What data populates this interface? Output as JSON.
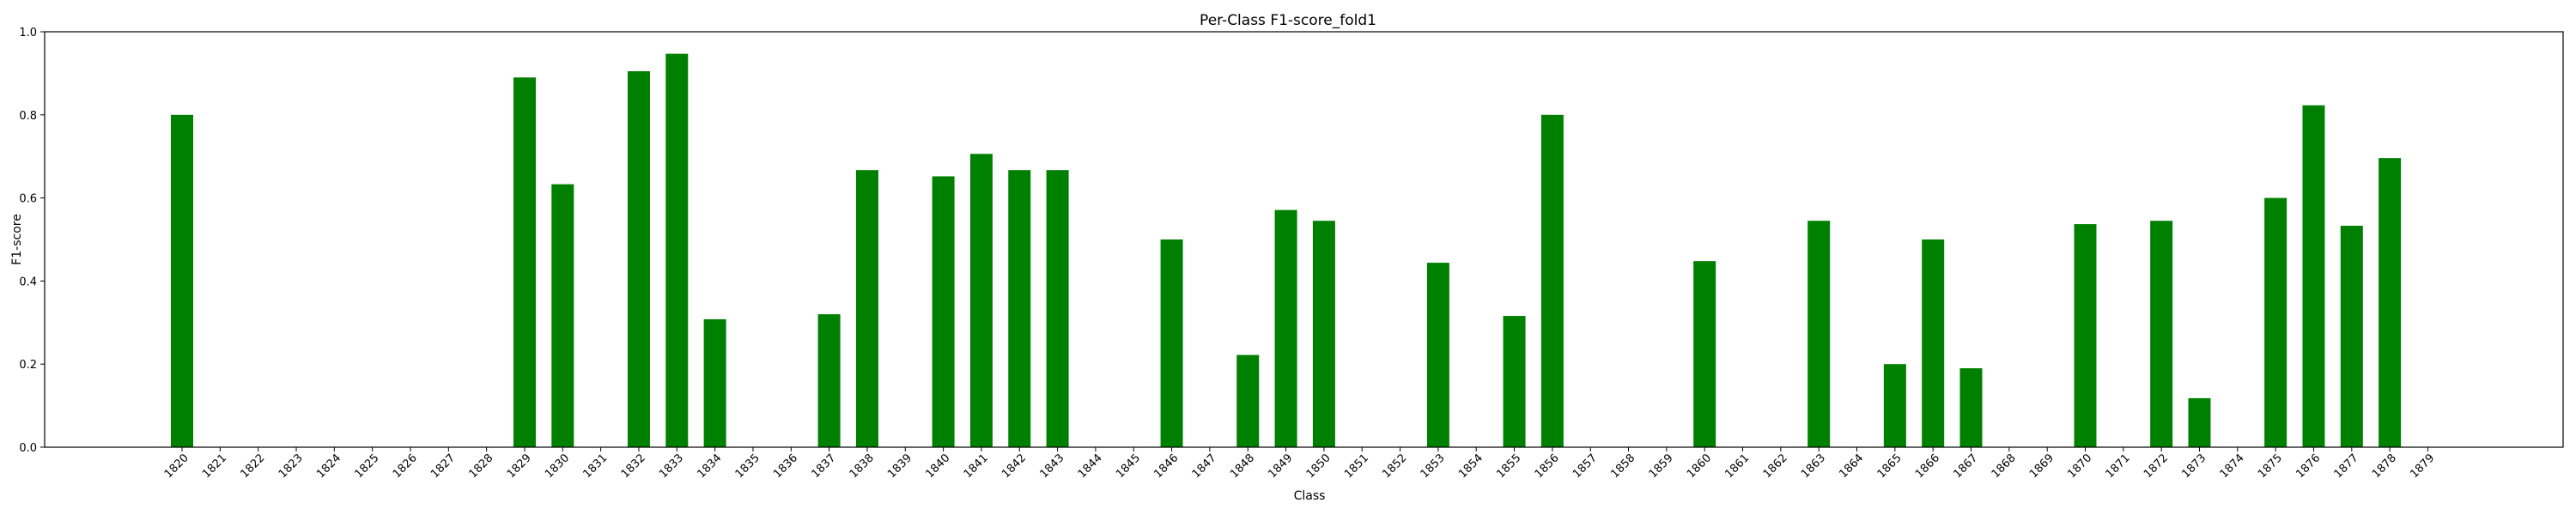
{
  "chart_data": {
    "type": "bar",
    "title": "Per-Class F1-score_fold1",
    "xlabel": "Class",
    "ylabel": "F1-score",
    "ylim": [
      0,
      1.0
    ],
    "yticks": [
      "0.0",
      "0.2",
      "0.4",
      "0.6",
      "0.8",
      "1.0"
    ],
    "grid": false,
    "bar_color": "#008000",
    "categories": [
      "1820",
      "1821",
      "1822",
      "1823",
      "1824",
      "1825",
      "1826",
      "1827",
      "1828",
      "1829",
      "1830",
      "1831",
      "1832",
      "1833",
      "1834",
      "1835",
      "1836",
      "1837",
      "1838",
      "1839",
      "1840",
      "1841",
      "1842",
      "1843",
      "1844",
      "1845",
      "1846",
      "1847",
      "1848",
      "1849",
      "1850",
      "1851",
      "1852",
      "1853",
      "1854",
      "1855",
      "1856",
      "1857",
      "1858",
      "1859",
      "1860",
      "1861",
      "1862",
      "1863",
      "1864",
      "1865",
      "1866",
      "1867",
      "1868",
      "1869",
      "1870",
      "1871",
      "1872",
      "1873",
      "1874",
      "1875",
      "1876",
      "1877",
      "1878",
      "1879"
    ],
    "values": [
      0.8,
      0,
      0,
      0,
      0,
      0,
      0,
      0,
      0,
      0.89,
      0.633,
      0,
      0.905,
      0.947,
      0.308,
      0,
      0,
      0.32,
      0.667,
      0,
      0.652,
      0.706,
      0.667,
      0.667,
      0,
      0,
      0.5,
      0,
      0.222,
      0.571,
      0.545,
      0,
      0,
      0.444,
      0,
      0.316,
      0.8,
      0,
      0,
      0,
      0.448,
      0,
      0,
      0.545,
      0,
      0.2,
      0.5,
      0.19,
      0,
      0,
      0.537,
      0,
      0.545,
      0.118,
      0,
      0.6,
      0.823,
      0.533,
      0.696,
      0
    ]
  }
}
